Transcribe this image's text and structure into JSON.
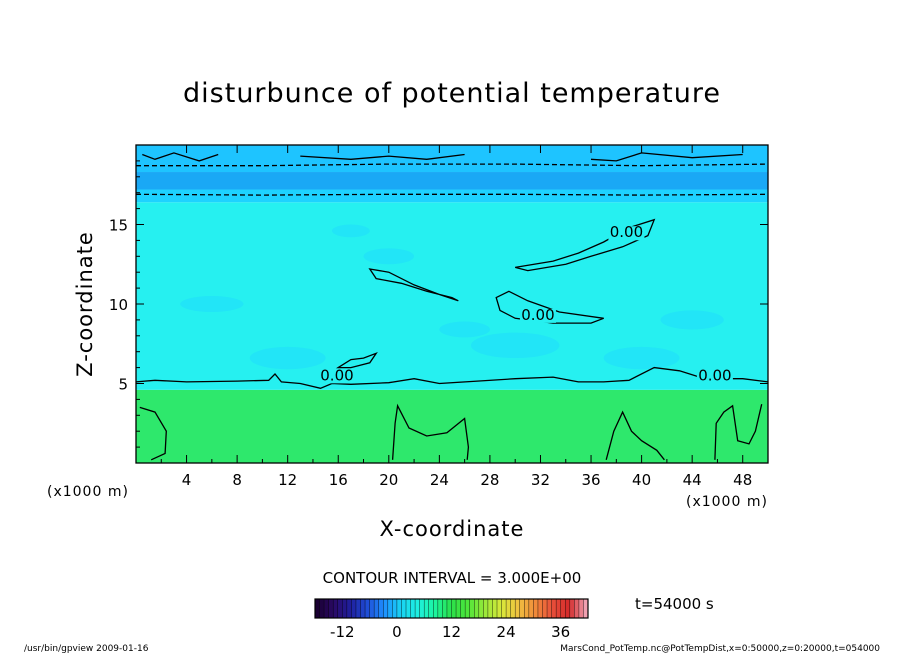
{
  "chart_data": {
    "type": "heatmap",
    "title": "disturbunce of potential temperature",
    "xlabel": "X-coordinate",
    "ylabel": "Z-coordinate",
    "x_unit": "(x1000 m)",
    "y_unit": "(x1000 m)",
    "xlim": [
      0,
      50
    ],
    "ylim": [
      0,
      20
    ],
    "x_ticks": [
      "4",
      "8",
      "12",
      "16",
      "20",
      "24",
      "28",
      "32",
      "36",
      "40",
      "44",
      "48"
    ],
    "y_ticks": [
      "5",
      "10",
      "15"
    ],
    "contour_labels": [
      {
        "text": "0.00",
        "x": 15.9,
        "z": 5.2
      },
      {
        "text": "0.00",
        "x": 31.8,
        "z": 9.0
      },
      {
        "text": "0.00",
        "x": 38.8,
        "z": 14.2
      },
      {
        "text": "0.00",
        "x": 45.8,
        "z": 5.2
      }
    ],
    "contour_interval_label": "CONTOUR INTERVAL = 3.000E+00",
    "colorbar": {
      "range": [
        -18,
        42
      ],
      "tick_labels": [
        "-12",
        "0",
        "12",
        "24",
        "36"
      ],
      "tick_values": [
        -12,
        0,
        12,
        24,
        36
      ],
      "colors": [
        "#1a0033",
        "#2a0a66",
        "#1f1f9e",
        "#1f4fd8",
        "#1e90ff",
        "#19d3f3",
        "#1ef0e0",
        "#1cf5a0",
        "#2be04a",
        "#4fe63a",
        "#9be83a",
        "#d8e83a",
        "#f0c040",
        "#f08a3a",
        "#e8503a",
        "#d42a2a",
        "#f0a0b0"
      ]
    },
    "field_bands": [
      {
        "z0": 0.0,
        "z1": 4.6,
        "value": 6,
        "color": "#2ee86c"
      },
      {
        "z0": 4.6,
        "z1": 16.4,
        "value": 0,
        "color": "#26f0f0"
      },
      {
        "z0": 16.4,
        "z1": 17.2,
        "value": -2,
        "color": "#1ed2ff"
      },
      {
        "z0": 17.2,
        "z1": 18.3,
        "value": -5,
        "color": "#1aa8f5"
      },
      {
        "z0": 18.3,
        "z1": 20.0,
        "value": -3,
        "color": "#1ec4ff"
      }
    ]
  },
  "time_label": "t=54000 s",
  "footer": {
    "left": "/usr/bin/gpview   2009-01-16",
    "right": "MarsCond_PotTemp.nc@PotTempDist,x=0:50000,z=0:20000,t=054000"
  },
  "colors": {
    "contour": "#000000"
  }
}
